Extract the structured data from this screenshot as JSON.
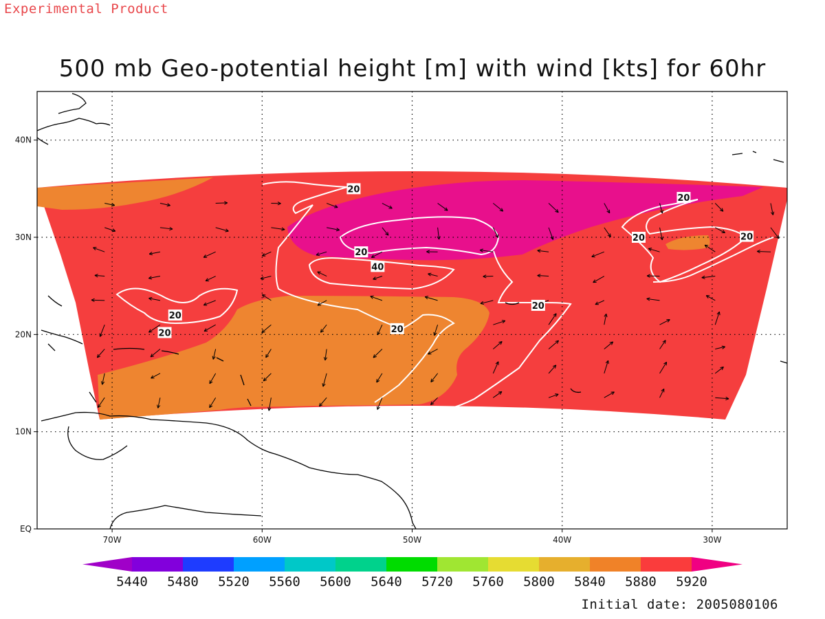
{
  "header_note": "Experimental Product",
  "title": "500 mb Geo-potential height [m] with wind [kts] for 60hr",
  "initial_date": "Initial date: 2005080106",
  "colors": {
    "c5880": "#ee8530",
    "c5920": "#f53e3e",
    "above": "#e8108c",
    "coast": "#000000",
    "contour": "#ffffff"
  },
  "chart_data": {
    "type": "heatmap",
    "x_range": [
      -75,
      -25
    ],
    "y_range": [
      0,
      45
    ],
    "lon_ticks": [
      "70W",
      "60W",
      "50W",
      "40W",
      "30W"
    ],
    "lon_values": [
      -70,
      -60,
      -50,
      -40,
      -30
    ],
    "lat_ticks": [
      "EQ",
      "10N",
      "20N",
      "30N",
      "40N"
    ],
    "lat_values": [
      0,
      10,
      20,
      30,
      40
    ],
    "grid": true,
    "colorbar": {
      "colors": [
        "#a000c8",
        "#8200dc",
        "#1e3cff",
        "#00a0ff",
        "#00c8c8",
        "#00d28c",
        "#00dc00",
        "#a0e632",
        "#e6dc32",
        "#e6af2d",
        "#f08228",
        "#fa3c3c",
        "#f00082"
      ],
      "labels": [
        "5440",
        "5480",
        "5520",
        "5560",
        "5600",
        "5640",
        "5720",
        "5760",
        "5800",
        "5840",
        "5880",
        "5920"
      ]
    },
    "wind_contour_labels": [
      {
        "text": "20",
        "lon": -53.9,
        "lat": 35.0
      },
      {
        "text": "20",
        "lon": -31.9,
        "lat": 34.1
      },
      {
        "text": "20",
        "lon": -34.9,
        "lat": 30.0
      },
      {
        "text": "20",
        "lon": -27.7,
        "lat": 30.1
      },
      {
        "text": "20",
        "lon": -53.4,
        "lat": 28.5
      },
      {
        "text": "40",
        "lon": -52.3,
        "lat": 27.0
      },
      {
        "text": "20",
        "lon": -41.6,
        "lat": 23.0
      },
      {
        "text": "20",
        "lon": -65.8,
        "lat": 22.0
      },
      {
        "text": "20",
        "lon": -66.5,
        "lat": 20.2
      },
      {
        "text": "20",
        "lon": -51.0,
        "lat": 20.6
      }
    ]
  }
}
